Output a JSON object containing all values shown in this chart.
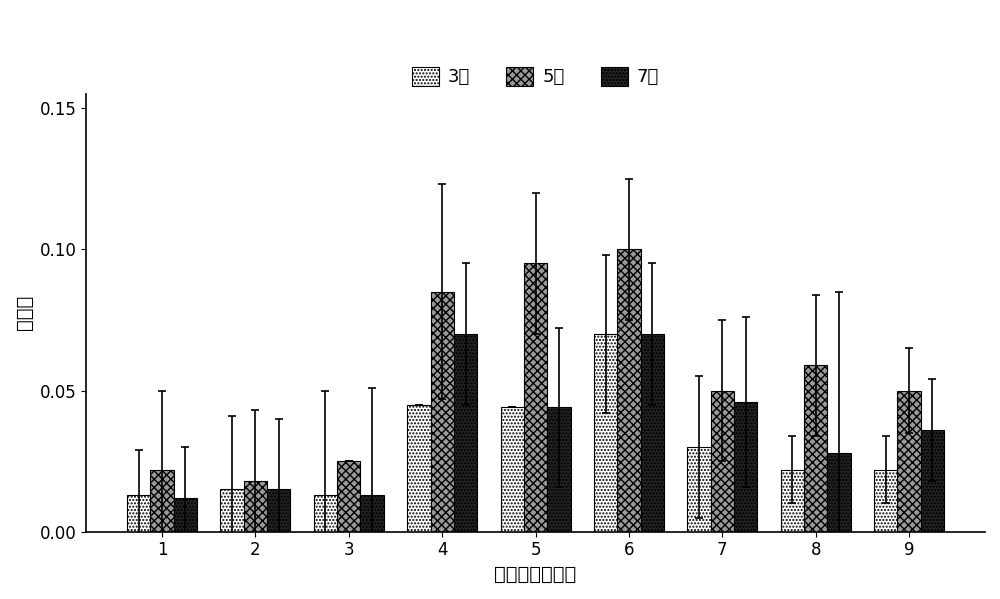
{
  "categories": [
    "1",
    "2",
    "3",
    "4",
    "5",
    "6",
    "7",
    "8",
    "9"
  ],
  "bar_values": {
    "3天": [
      0.013,
      0.015,
      0.013,
      0.045,
      0.044,
      0.07,
      0.03,
      0.022,
      0.022
    ],
    "5天": [
      0.022,
      0.018,
      0.025,
      0.085,
      0.095,
      0.1,
      0.05,
      0.059,
      0.05
    ],
    "7天": [
      0.012,
      0.015,
      0.013,
      0.07,
      0.044,
      0.07,
      0.046,
      0.028,
      0.036
    ]
  },
  "error_values": {
    "3天": [
      0.016,
      0.026,
      0.037,
      0.0,
      0.0,
      0.028,
      0.025,
      0.012,
      0.012
    ],
    "5天": [
      0.028,
      0.025,
      0.0,
      0.038,
      0.025,
      0.025,
      0.025,
      0.025,
      0.015
    ],
    "7天": [
      0.018,
      0.025,
      0.038,
      0.025,
      0.028,
      0.025,
      0.03,
      0.057,
      0.018
    ]
  },
  "legend_labels": [
    "3天",
    "5天",
    "7天"
  ],
  "ylabel": "阳性率",
  "xlabel": "基因枪参数组合",
  "ylim": [
    0,
    0.155
  ],
  "yticks": [
    0.0,
    0.05,
    0.1,
    0.15
  ],
  "bar_width": 0.25,
  "background_color": "#ffffff",
  "edge_color": "#000000",
  "font_size": 14,
  "legend_font_size": 13,
  "bar_colors": [
    "white",
    "#888888",
    "#111111"
  ],
  "bar_hatches": [
    "....",
    "++++",
    "...."
  ],
  "bar_hatch_colors": [
    "black",
    "black",
    "white"
  ]
}
